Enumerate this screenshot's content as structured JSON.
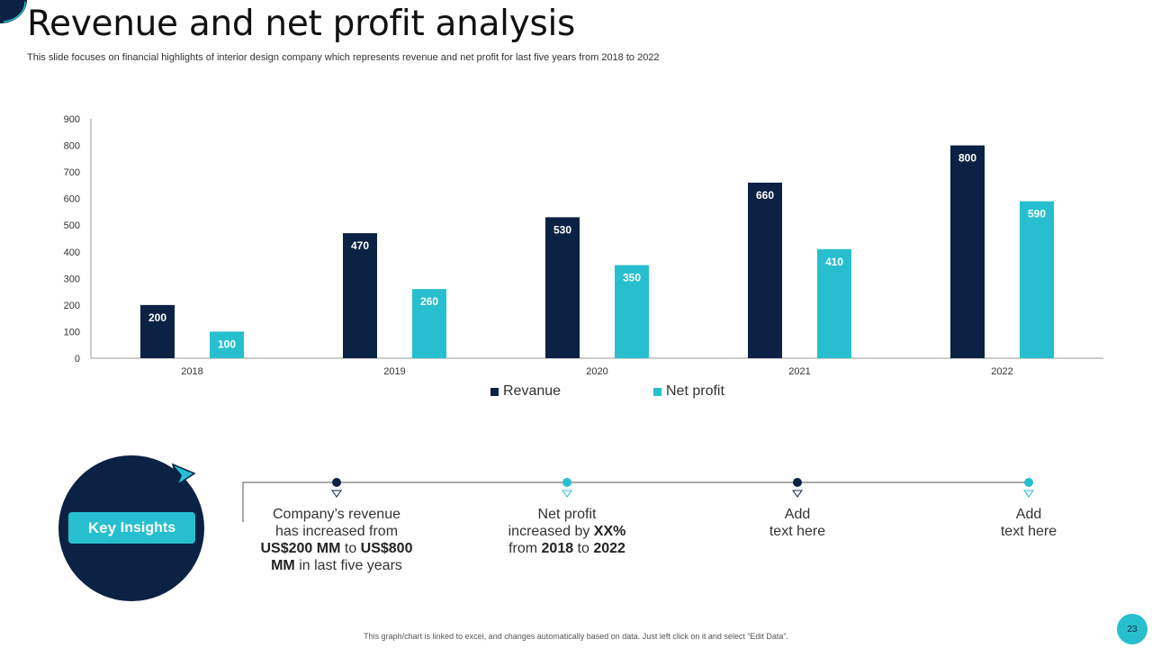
{
  "title": "Revenue and net profit analysis",
  "subtitle": "This slide focuses on financial highlights of interior design company which represents revenue and net profit for last five years from 2018 to 2022",
  "chart_data": {
    "type": "bar",
    "categories": [
      "2018",
      "2019",
      "2020",
      "2021",
      "2022"
    ],
    "series": [
      {
        "name": "Revanue",
        "values": [
          200,
          470,
          530,
          660,
          800
        ],
        "color": "#0b2244"
      },
      {
        "name": "Net profit",
        "values": [
          100,
          260,
          350,
          410,
          590
        ],
        "color": "#27bfcf"
      }
    ],
    "ylim": [
      0,
      900
    ],
    "yticks": [
      0,
      100,
      200,
      300,
      400,
      500,
      600,
      700,
      800,
      900
    ],
    "legend": "bottom",
    "title": "",
    "xlabel": "",
    "ylabel": ""
  },
  "key_insights": {
    "label_key": "Key",
    "label_rest": "Insights",
    "colors": {
      "dark": "#0b2244",
      "accent": "#27bfcf"
    },
    "items": [
      {
        "line1": "Company’s revenue",
        "line2": "has increased from",
        "line3a": "US$200 MM",
        "line3b": " to ",
        "line3c": "US$800",
        "line4a": "MM",
        "line4b": " in last five years"
      },
      {
        "line1": "Net profit",
        "line2a": "increased by ",
        "line2b": "XX%",
        "line3a": "from ",
        "line3b": "2018",
        "line3c": " to ",
        "line3d": "2022"
      },
      {
        "line1": "Add",
        "line2": "text here"
      },
      {
        "line1": "Add",
        "line2": "text here"
      }
    ]
  },
  "footer": "This graph/chart is linked to excel, and changes automatically based on data. Just left click on it and select “Edit Data”.",
  "page_number": "23"
}
